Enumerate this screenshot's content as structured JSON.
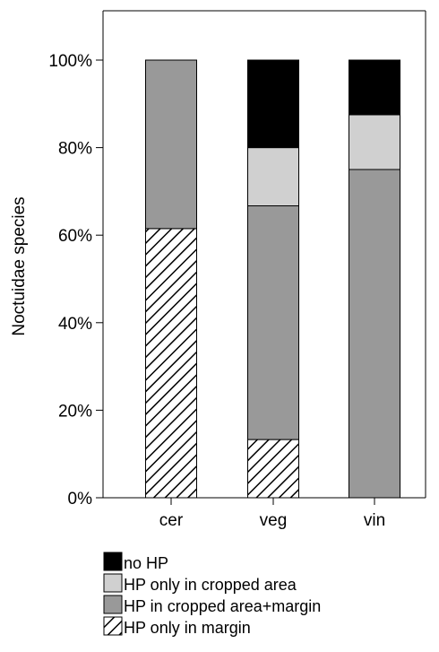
{
  "chart_data": {
    "type": "bar",
    "stacked": true,
    "percent": true,
    "xlabel": "",
    "ylabel": "Noctuidae species",
    "ylim": [
      0,
      100
    ],
    "y_ticks": [
      "0%",
      "20%",
      "40%",
      "60%",
      "80%",
      "100%"
    ],
    "categories": [
      "cer",
      "veg",
      "vin"
    ],
    "series": [
      {
        "name": "HP only in margin",
        "values": [
          61.5,
          13.3,
          0
        ],
        "color": "#ffffff",
        "pattern": "hatch"
      },
      {
        "name": "HP in cropped area+margin",
        "values": [
          38.5,
          53.4,
          75.0
        ],
        "color": "#999999"
      },
      {
        "name": "HP only in cropped area",
        "values": [
          0,
          13.3,
          12.5
        ],
        "color": "#d0d0d0"
      },
      {
        "name": "no HP",
        "values": [
          0,
          20.0,
          12.5
        ],
        "color": "#000000"
      }
    ],
    "legend_order": [
      "no HP",
      "HP only in cropped area",
      "HP in cropped area+margin",
      "HP only in margin"
    ],
    "legend_position": "bottom-left",
    "grid": false
  }
}
